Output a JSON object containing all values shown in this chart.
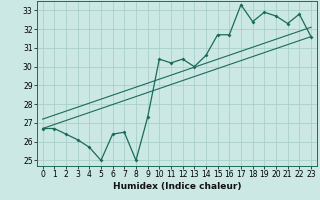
{
  "title": "",
  "xlabel": "Humidex (Indice chaleur)",
  "ylabel": "",
  "xlim": [
    -0.5,
    23.5
  ],
  "ylim": [
    24.7,
    33.5
  ],
  "yticks": [
    25,
    26,
    27,
    28,
    29,
    30,
    31,
    32,
    33
  ],
  "xticks": [
    0,
    1,
    2,
    3,
    4,
    5,
    6,
    7,
    8,
    9,
    10,
    11,
    12,
    13,
    14,
    15,
    16,
    17,
    18,
    19,
    20,
    21,
    22,
    23
  ],
  "bg_color": "#cce8e5",
  "line_color": "#1a6b5a",
  "grid_color": "#aacfcb",
  "series1_x": [
    0,
    1,
    2,
    3,
    4,
    5,
    6,
    7,
    8,
    9,
    10,
    11,
    12,
    13,
    14,
    15,
    16,
    17,
    18,
    19,
    20,
    21,
    22,
    23
  ],
  "series1_y": [
    26.7,
    26.7,
    26.4,
    26.1,
    25.7,
    25.0,
    26.4,
    26.5,
    25.0,
    27.3,
    30.4,
    30.2,
    30.4,
    30.0,
    30.6,
    31.7,
    31.7,
    33.3,
    32.4,
    32.9,
    32.7,
    32.3,
    32.8,
    31.6
  ],
  "series2_x": [
    0,
    23
  ],
  "series2_y": [
    26.7,
    31.6
  ],
  "series3_x": [
    0,
    23
  ],
  "series3_y": [
    27.2,
    32.1
  ],
  "xlabel_fontsize": 6.5,
  "tick_fontsize": 5.5
}
